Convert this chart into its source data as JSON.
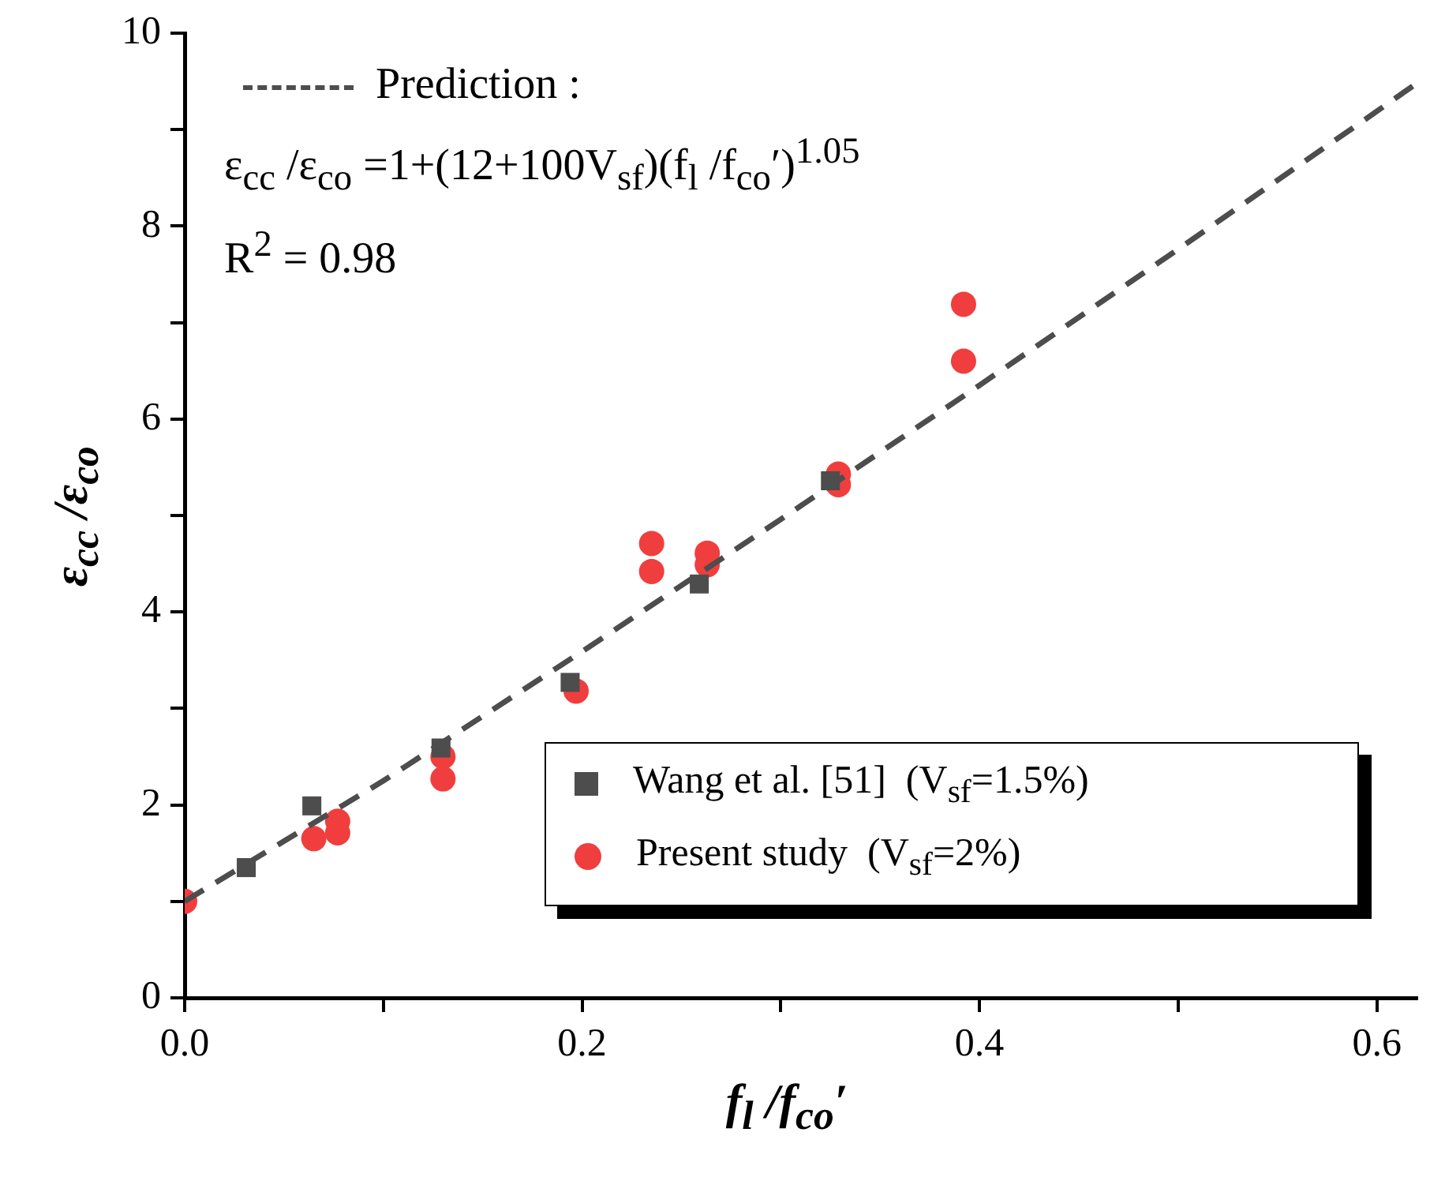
{
  "chart_data": {
    "type": "scatter",
    "xlabel": "f$_{l}$ /f$_{co}$′",
    "ylabel": "ε$_{cc}$ /ε$_{co}$",
    "xlim": [
      0,
      0.62
    ],
    "ylim": [
      0,
      10
    ],
    "xticks": [
      {
        "value": 0,
        "label": "0.0"
      },
      {
        "value": 0.1,
        "label": null
      },
      {
        "value": 0.2,
        "label": "0.2"
      },
      {
        "value": 0.3,
        "label": null
      },
      {
        "value": 0.4,
        "label": "0.4"
      },
      {
        "value": 0.5,
        "label": null
      },
      {
        "value": 0.6,
        "label": "0.6"
      }
    ],
    "yticks": [
      0,
      {
        "value": 1,
        "label": null
      },
      2,
      {
        "value": 3,
        "label": null
      },
      4,
      {
        "value": 5,
        "label": null
      },
      6,
      {
        "value": 7,
        "label": null
      },
      8,
      {
        "value": 9,
        "label": null
      },
      10
    ],
    "legend": "bottom right",
    "grid": false,
    "series": [
      {
        "name": "Wang et al. [51]  (V$_{sf}$=1.5%)",
        "type": "scatter",
        "marker": "square",
        "color": "#4d4d4d",
        "x": [
          0.031,
          0.064,
          0.129,
          0.194,
          0.259,
          0.325
        ],
        "values": [
          1.35,
          1.99,
          2.59,
          3.27,
          4.29,
          5.36
        ]
      },
      {
        "name": "Present study  (V$_{sf}$=2%)",
        "type": "scatter",
        "marker": "circle",
        "color": "#f03e3e",
        "x": [
          0,
          0.065,
          0.077,
          0.077,
          0.13,
          0.13,
          0.197,
          0.235,
          0.235,
          0.263,
          0.263,
          0.329,
          0.329,
          0.392,
          0.392
        ],
        "values": [
          1.0,
          1.65,
          1.83,
          1.71,
          2.5,
          2.27,
          3.18,
          4.71,
          4.42,
          4.61,
          4.49,
          5.43,
          5.32,
          7.19,
          6.6
        ]
      },
      {
        "type": "line",
        "marker": "none",
        "line_style": "dashed",
        "color": "#4d4d4d",
        "x": [
          0,
          0.1,
          0.2,
          0.3,
          0.4,
          0.5,
          0.6,
          0.62
        ],
        "values": [
          1,
          2.25,
          3.59,
          4.96,
          6.35,
          7.76,
          9.19,
          9.48
        ]
      }
    ],
    "annotations": [
      "Prediction :",
      "ε$_{cc}$ /ε$_{co}$ =1+(12+100V$_{sf}$)(f$_{l}$ /f$_{co}$′)$^{1.05}$",
      "R$^{2}$ = 0.98"
    ]
  }
}
